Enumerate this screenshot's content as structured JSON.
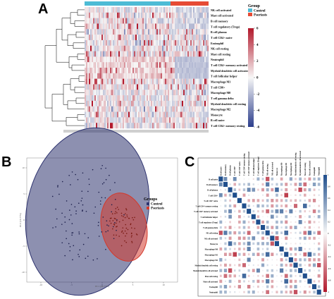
{
  "panels": {
    "A": "A",
    "B": "B",
    "C": "C"
  },
  "chart_data": [
    {
      "panel": "A",
      "type": "heatmap",
      "row_labels": [
        "NK cell activated",
        "Mast cell activated",
        "B cell memory",
        "T cell regulatory (Tregs)",
        "B cell plasma",
        "T cell CD4+ naive",
        "Eosinophil",
        "NK cell resting",
        "Mast cell resting",
        "Neutrophil",
        "T cell CD4+ memory activated",
        "Myeloid dendritic cell activated",
        "T cell follicular helper",
        "Macrophage M1",
        "T cell CD8+",
        "Macrophage M0",
        "T cell gamma delta",
        "Myeloid dendritic cell resting",
        "Macrophage M2",
        "Monocyte",
        "B cell naive",
        "T cell CD4+ memory resting"
      ],
      "group_annotation": {
        "label": "Group",
        "levels": [
          "Control",
          "Psoriasis"
        ],
        "colors": {
          "Control": "#4dbbd5",
          "Psoriasis": "#e64b35"
        },
        "control_fraction": 0.73
      },
      "colorbar": {
        "ticks": [
          6,
          4,
          2,
          0,
          -2,
          -4,
          -6
        ],
        "range": [
          -6,
          6
        ],
        "colors": {
          "high": "#b2182b",
          "mid": "#f7f7f7",
          "low": "#2c3e8c"
        }
      }
    },
    {
      "panel": "B",
      "type": "scatter",
      "xlabel": "PC1 (44.77%)",
      "ylabel": "PC2 (16.77%)",
      "legend": {
        "title": "Groups",
        "entries": [
          {
            "name": "Control",
            "color": "#2f3470"
          },
          {
            "name": "Psoriasis",
            "color": "#d4392b"
          }
        ]
      },
      "x_ticks": [
        "-10",
        "-5",
        "0",
        "5",
        "10"
      ],
      "y_ticks": [
        "10",
        "5",
        "0",
        "-5",
        "-10"
      ],
      "n_control": 100,
      "n_psoriasis": 65
    },
    {
      "panel": "C",
      "type": "heatmap",
      "labels": [
        "B cell naive",
        "B cell memory",
        "B cell plasma",
        "T cell CD8+",
        "T cell CD4+ naive",
        "T cell CD4+ memory resting",
        "T cell CD4+ memory activated",
        "T cell follicular helper",
        "T cell regulatory (Tregs)",
        "T cell gamma delta",
        "NK cell resting",
        "NK cell activated",
        "Monocyte",
        "Macrophage M0",
        "Macrophage M1",
        "Macrophage M2",
        "Myeloid dendritic cell resting",
        "Myeloid dendritic cell activated",
        "Mast cell resting",
        "Mast cell activated",
        "Eosinophil",
        "Neutrophil"
      ],
      "colorbar": {
        "ticks": [
          "1",
          "0.8",
          "0.6",
          "0.4",
          "0.2",
          "0",
          "-0.2",
          "-0.4",
          "-0.6",
          "-0.8",
          "-1"
        ],
        "range": [
          -1,
          1
        ],
        "colors": {
          "high": "#1f4e8c",
          "mid": "#f7f7f7",
          "low": "#b2182b"
        }
      }
    }
  ]
}
